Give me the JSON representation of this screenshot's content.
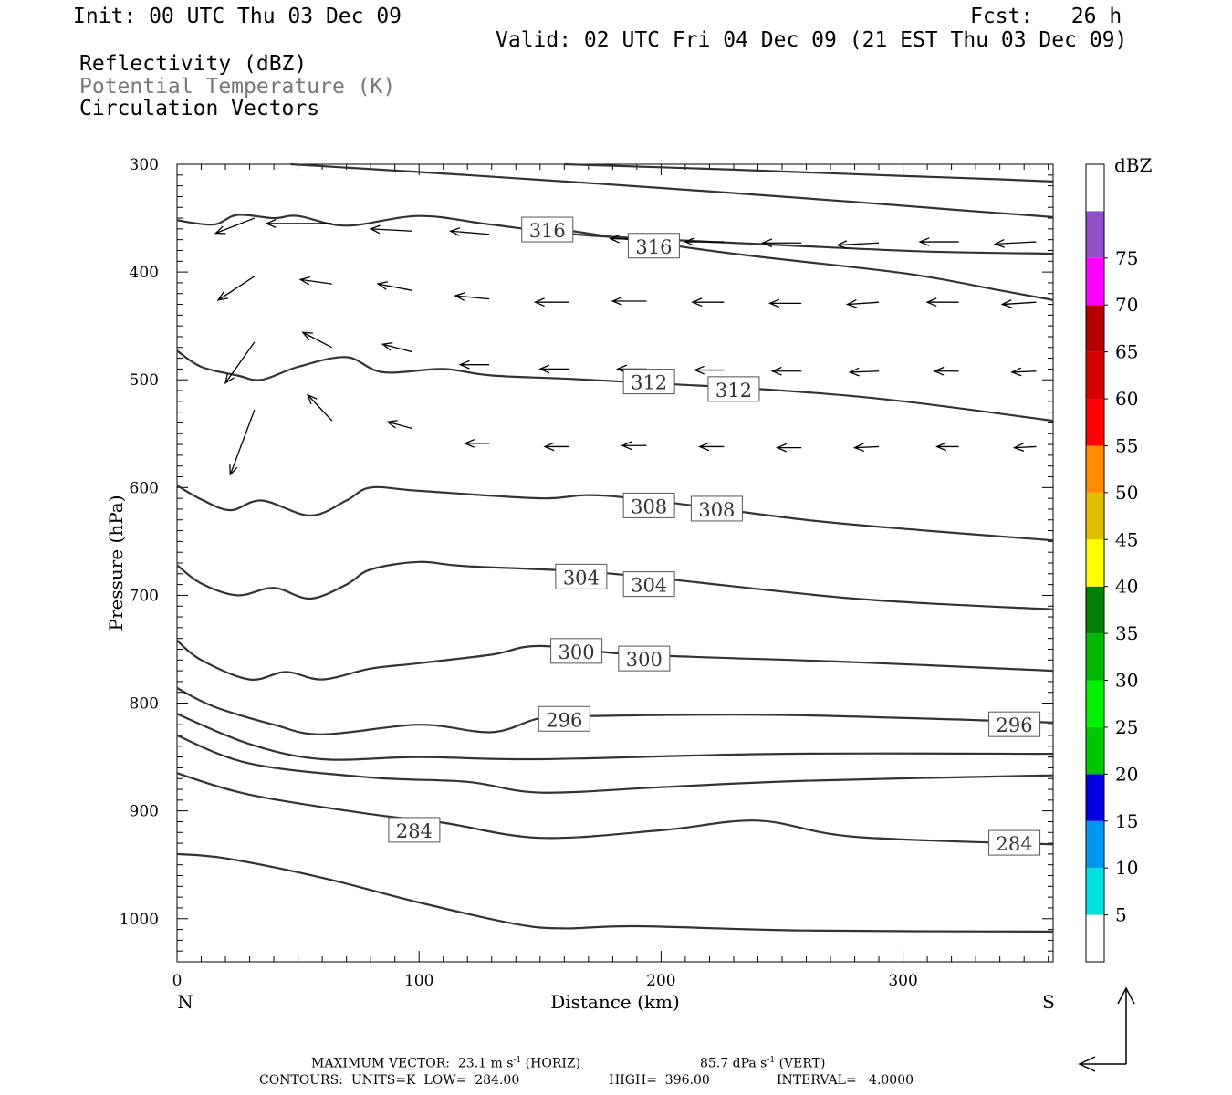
{
  "header": {
    "init": "Init: 00 UTC Thu 03 Dec 09",
    "fcst": "Fcst:   26 h",
    "valid": "Valid: 02 UTC Fri 04 Dec 09 (21 EST Thu 03 Dec 09)",
    "field1": "Reflectivity (dBZ)",
    "field2": "Potential Temperature (K)",
    "field3": "Circulation Vectors"
  },
  "footer": {
    "max_vector_label": "MAXIMUM VECTOR:",
    "horiz_value": "23.1 m s",
    "horiz_unit": "(HORIZ)",
    "vert_value": "85.7 dPa s",
    "vert_unit": "(VERT)",
    "exp": "-1",
    "contours_label": "CONTOURS:",
    "units": "UNITS=K",
    "low_label": "LOW=",
    "low_value": "284.00",
    "high_label": "HIGH=",
    "high_value": "396.00",
    "interval_label": "INTERVAL=",
    "interval_value": "4.0000"
  },
  "chart_data": {
    "type": "line",
    "xlabel": "Distance (km)",
    "ylabel": "Pressure (hPa)",
    "xlim": [
      0,
      362
    ],
    "ylim": [
      1040,
      300
    ],
    "x_ticks": [
      0,
      100,
      200,
      300
    ],
    "y_ticks": [
      300,
      400,
      500,
      600,
      700,
      800,
      900,
      1000
    ],
    "x_end_labels": {
      "left": "N",
      "right": "S"
    },
    "line_color": "#333333",
    "contour_label_values": [
      "316",
      "316",
      "312",
      "312",
      "308",
      "308",
      "304",
      "304",
      "300",
      "300",
      "296",
      "296",
      "284",
      "284"
    ],
    "theta_contours": [
      {
        "points": [
          [
            47,
            300
          ],
          [
            120,
            310
          ],
          [
            200,
            322
          ],
          [
            280,
            335
          ],
          [
            320,
            342
          ],
          [
            362,
            349
          ]
        ]
      },
      {
        "points": [
          [
            160,
            300
          ],
          [
            230,
            305
          ],
          [
            290,
            310
          ],
          [
            340,
            314
          ],
          [
            362,
            316
          ]
        ]
      },
      {
        "points": [
          [
            0,
            352
          ],
          [
            15,
            356
          ],
          [
            25,
            347
          ],
          [
            40,
            350
          ],
          [
            50,
            348
          ],
          [
            70,
            357
          ],
          [
            100,
            348
          ],
          [
            130,
            356
          ],
          [
            170,
            366
          ],
          [
            250,
            375
          ],
          [
            310,
            381
          ],
          [
            362,
            383
          ]
        ]
      },
      {
        "points": [
          [
            160,
            361
          ],
          [
            230,
            383
          ],
          [
            300,
            401
          ],
          [
            340,
            417
          ],
          [
            362,
            426
          ]
        ]
      },
      {
        "points": [
          [
            0,
            473
          ],
          [
            10,
            488
          ],
          [
            25,
            496
          ],
          [
            35,
            500
          ],
          [
            50,
            488
          ],
          [
            70,
            479
          ],
          [
            85,
            493
          ],
          [
            110,
            490
          ],
          [
            130,
            496
          ],
          [
            170,
            500
          ],
          [
            250,
            510
          ],
          [
            300,
            520
          ],
          [
            362,
            538
          ]
        ]
      },
      {
        "points": [
          [
            0,
            598
          ],
          [
            10,
            611
          ],
          [
            22,
            621
          ],
          [
            35,
            612
          ],
          [
            55,
            626
          ],
          [
            70,
            612
          ],
          [
            80,
            600
          ],
          [
            100,
            603
          ],
          [
            150,
            610
          ],
          [
            180,
            608
          ],
          [
            260,
            630
          ],
          [
            310,
            640
          ],
          [
            362,
            649
          ]
        ]
      },
      {
        "points": [
          [
            0,
            672
          ],
          [
            10,
            689
          ],
          [
            25,
            700
          ],
          [
            40,
            693
          ],
          [
            55,
            703
          ],
          [
            70,
            690
          ],
          [
            80,
            676
          ],
          [
            100,
            669
          ],
          [
            120,
            673
          ],
          [
            180,
            680
          ],
          [
            280,
            703
          ],
          [
            362,
            713
          ]
        ]
      },
      {
        "points": [
          [
            0,
            742
          ],
          [
            10,
            760
          ],
          [
            30,
            778
          ],
          [
            45,
            771
          ],
          [
            60,
            778
          ],
          [
            80,
            768
          ],
          [
            100,
            763
          ],
          [
            130,
            755
          ],
          [
            150,
            747
          ],
          [
            190,
            755
          ],
          [
            280,
            762
          ],
          [
            362,
            770
          ]
        ]
      },
      {
        "points": [
          [
            0,
            786
          ],
          [
            15,
            803
          ],
          [
            40,
            820
          ],
          [
            60,
            829
          ],
          [
            100,
            820
          ],
          [
            130,
            827
          ],
          [
            150,
            814
          ],
          [
            170,
            812
          ],
          [
            250,
            811
          ],
          [
            362,
            818
          ]
        ]
      },
      {
        "points": [
          [
            0,
            810
          ],
          [
            30,
            838
          ],
          [
            60,
            852
          ],
          [
            100,
            850
          ],
          [
            150,
            852
          ],
          [
            250,
            847
          ],
          [
            362,
            847
          ]
        ]
      },
      {
        "points": [
          [
            0,
            830
          ],
          [
            30,
            856
          ],
          [
            80,
            869
          ],
          [
            120,
            873
          ],
          [
            150,
            883
          ],
          [
            200,
            878
          ],
          [
            260,
            872
          ],
          [
            362,
            867
          ]
        ]
      },
      {
        "points": [
          [
            0,
            865
          ],
          [
            30,
            885
          ],
          [
            80,
            903
          ],
          [
            110,
            911
          ],
          [
            150,
            925
          ],
          [
            200,
            918
          ],
          [
            240,
            909
          ],
          [
            280,
            924
          ],
          [
            362,
            931
          ]
        ]
      },
      {
        "points": [
          [
            0,
            940
          ],
          [
            20,
            944
          ],
          [
            60,
            962
          ],
          [
            100,
            985
          ],
          [
            140,
            1005
          ],
          [
            160,
            1009
          ],
          [
            190,
            1007
          ],
          [
            260,
            1011
          ],
          [
            362,
            1012
          ]
        ]
      }
    ],
    "contour_labels": [
      {
        "text": "316",
        "x": 153,
        "p": 361
      },
      {
        "text": "316",
        "x": 197,
        "p": 376
      },
      {
        "text": "312",
        "x": 195,
        "p": 502
      },
      {
        "text": "312",
        "x": 230,
        "p": 509
      },
      {
        "text": "308",
        "x": 195,
        "p": 617
      },
      {
        "text": "308",
        "x": 223,
        "p": 620
      },
      {
        "text": "304",
        "x": 167,
        "p": 683
      },
      {
        "text": "304",
        "x": 195,
        "p": 690
      },
      {
        "text": "300",
        "x": 165,
        "p": 752
      },
      {
        "text": "300",
        "x": 193,
        "p": 759
      },
      {
        "text": "296",
        "x": 160,
        "p": 815
      },
      {
        "text": "296",
        "x": 346,
        "p": 820
      },
      {
        "text": "284",
        "x": 98,
        "p": 918
      },
      {
        "text": "284",
        "x": 346,
        "p": 930
      }
    ],
    "circulation_vectors": [
      {
        "x": 32,
        "p": 350,
        "dx": -16,
        "dp": 14
      },
      {
        "x": 64,
        "p": 355,
        "dx": -27,
        "dp": 0
      },
      {
        "x": 97,
        "p": 362,
        "dx": -17,
        "dp": -2
      },
      {
        "x": 129,
        "p": 365,
        "dx": -16,
        "dp": -3
      },
      {
        "x": 162,
        "p": 369,
        "dx": -14,
        "dp": -2
      },
      {
        "x": 194,
        "p": 370,
        "dx": -15,
        "dp": -1
      },
      {
        "x": 226,
        "p": 372,
        "dx": -16,
        "dp": 0
      },
      {
        "x": 258,
        "p": 373,
        "dx": -16,
        "dp": 0
      },
      {
        "x": 290,
        "p": 373,
        "dx": -17,
        "dp": 2
      },
      {
        "x": 323,
        "p": 372,
        "dx": -16,
        "dp": 0
      },
      {
        "x": 355,
        "p": 372,
        "dx": -17,
        "dp": 2
      },
      {
        "x": 32,
        "p": 404,
        "dx": -15,
        "dp": 22
      },
      {
        "x": 64,
        "p": 411,
        "dx": -13,
        "dp": -4
      },
      {
        "x": 97,
        "p": 417,
        "dx": -14,
        "dp": -6
      },
      {
        "x": 129,
        "p": 425,
        "dx": -14,
        "dp": -3
      },
      {
        "x": 162,
        "p": 428,
        "dx": -14,
        "dp": 0
      },
      {
        "x": 194,
        "p": 427,
        "dx": -14,
        "dp": 0
      },
      {
        "x": 226,
        "p": 428,
        "dx": -13,
        "dp": 0
      },
      {
        "x": 258,
        "p": 429,
        "dx": -13,
        "dp": 0
      },
      {
        "x": 290,
        "p": 428,
        "dx": -13,
        "dp": 2
      },
      {
        "x": 323,
        "p": 428,
        "dx": -13,
        "dp": 0
      },
      {
        "x": 355,
        "p": 428,
        "dx": -14,
        "dp": 2
      },
      {
        "x": 32,
        "p": 465,
        "dx": -12,
        "dp": 38
      },
      {
        "x": 64,
        "p": 470,
        "dx": -12,
        "dp": -14
      },
      {
        "x": 97,
        "p": 474,
        "dx": -12,
        "dp": -7
      },
      {
        "x": 129,
        "p": 486,
        "dx": -12,
        "dp": 0
      },
      {
        "x": 162,
        "p": 490,
        "dx": -12,
        "dp": 0
      },
      {
        "x": 194,
        "p": 490,
        "dx": -12,
        "dp": 0
      },
      {
        "x": 226,
        "p": 491,
        "dx": -12,
        "dp": 0
      },
      {
        "x": 258,
        "p": 492,
        "dx": -12,
        "dp": 0
      },
      {
        "x": 290,
        "p": 492,
        "dx": -12,
        "dp": 1
      },
      {
        "x": 323,
        "p": 492,
        "dx": -10,
        "dp": 0
      },
      {
        "x": 355,
        "p": 492,
        "dx": -10,
        "dp": 1
      },
      {
        "x": 32,
        "p": 528,
        "dx": -10,
        "dp": 60
      },
      {
        "x": 64,
        "p": 538,
        "dx": -10,
        "dp": -24
      },
      {
        "x": 97,
        "p": 545,
        "dx": -10,
        "dp": -6
      },
      {
        "x": 129,
        "p": 559,
        "dx": -10,
        "dp": 0
      },
      {
        "x": 162,
        "p": 562,
        "dx": -10,
        "dp": 0
      },
      {
        "x": 194,
        "p": 561,
        "dx": -10,
        "dp": 0
      },
      {
        "x": 226,
        "p": 562,
        "dx": -10,
        "dp": 0
      },
      {
        "x": 258,
        "p": 563,
        "dx": -10,
        "dp": 0
      },
      {
        "x": 290,
        "p": 562,
        "dx": -10,
        "dp": 1
      },
      {
        "x": 323,
        "p": 562,
        "dx": -9,
        "dp": 0
      },
      {
        "x": 355,
        "p": 562,
        "dx": -9,
        "dp": 1
      }
    ],
    "colorbar": {
      "title": "dBZ",
      "tick_labels": [
        "5",
        "10",
        "15",
        "20",
        "25",
        "30",
        "35",
        "40",
        "45",
        "50",
        "55",
        "60",
        "65",
        "70",
        "75"
      ],
      "colors": [
        "#00e0e0",
        "#0098f0",
        "#0000e0",
        "#00c800",
        "#00f000",
        "#00b800",
        "#008000",
        "#ffff00",
        "#e0c000",
        "#ff8c00",
        "#ff0000",
        "#d40000",
        "#b40000",
        "#ff00ff",
        "#9050c8"
      ]
    }
  }
}
